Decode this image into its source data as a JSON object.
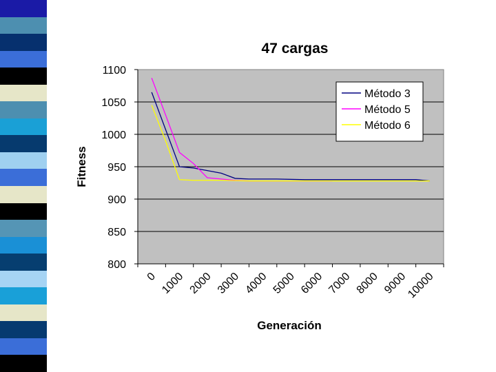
{
  "slide": {
    "stripe_colors": [
      "#1a1aa6",
      "#4d8fb0",
      "#06306e",
      "#3b6ed8",
      "#000000",
      "#e6e6c8",
      "#4d8fb0",
      "#1aa0d6",
      "#063a6e",
      "#9fd0f0",
      "#3b6ed8",
      "#e6e6c8",
      "#000000",
      "#5595b5",
      "#1a90d6",
      "#063e70",
      "#a6d4f4",
      "#19a0d8",
      "#e6e6c8",
      "#063a70",
      "#3b6ed8",
      "#000000"
    ]
  },
  "chart_data": {
    "type": "line",
    "title": "47 cargas",
    "xlabel": "Generación",
    "ylabel": "Fitness",
    "categories": [
      "0",
      "1000",
      "2000",
      "3000",
      "4000",
      "5000",
      "6000",
      "7000",
      "8000",
      "9000",
      "10000"
    ],
    "ylim": [
      800,
      1100
    ],
    "yticks": [
      "800",
      "850",
      "900",
      "950",
      "1000",
      "1050",
      "1100"
    ],
    "grid": "horizontal",
    "plot_background": "#c0c0c0",
    "legend_position": "top-right",
    "series": [
      {
        "name": "Método 3",
        "color": "#000080",
        "points": [
          [
            500,
            1065
          ],
          [
            1500,
            950
          ],
          [
            2000,
            948
          ],
          [
            3000,
            940
          ],
          [
            3500,
            932
          ],
          [
            4000,
            931
          ],
          [
            5000,
            931
          ],
          [
            6000,
            930
          ],
          [
            7000,
            930
          ],
          [
            8000,
            930
          ],
          [
            9000,
            930
          ],
          [
            10000,
            930
          ],
          [
            10500,
            928
          ]
        ]
      },
      {
        "name": "Método 5",
        "color": "#ff00ff",
        "points": [
          [
            500,
            1087
          ],
          [
            1000,
            1030
          ],
          [
            1500,
            972
          ],
          [
            2000,
            955
          ],
          [
            2500,
            933
          ],
          [
            3000,
            931
          ],
          [
            3500,
            929
          ],
          [
            4000,
            928
          ],
          [
            5000,
            928
          ],
          [
            6000,
            928
          ],
          [
            7000,
            928
          ]
        ]
      },
      {
        "name": "Método 6",
        "color": "#ffff00",
        "points": [
          [
            500,
            1045
          ],
          [
            1000,
            990
          ],
          [
            1500,
            930
          ],
          [
            2000,
            929
          ],
          [
            3000,
            929
          ],
          [
            4000,
            928
          ],
          [
            5000,
            928
          ],
          [
            6000,
            928
          ],
          [
            7000,
            928
          ],
          [
            8000,
            928
          ],
          [
            9000,
            928
          ],
          [
            10000,
            928
          ],
          [
            10500,
            928
          ]
        ]
      }
    ]
  }
}
